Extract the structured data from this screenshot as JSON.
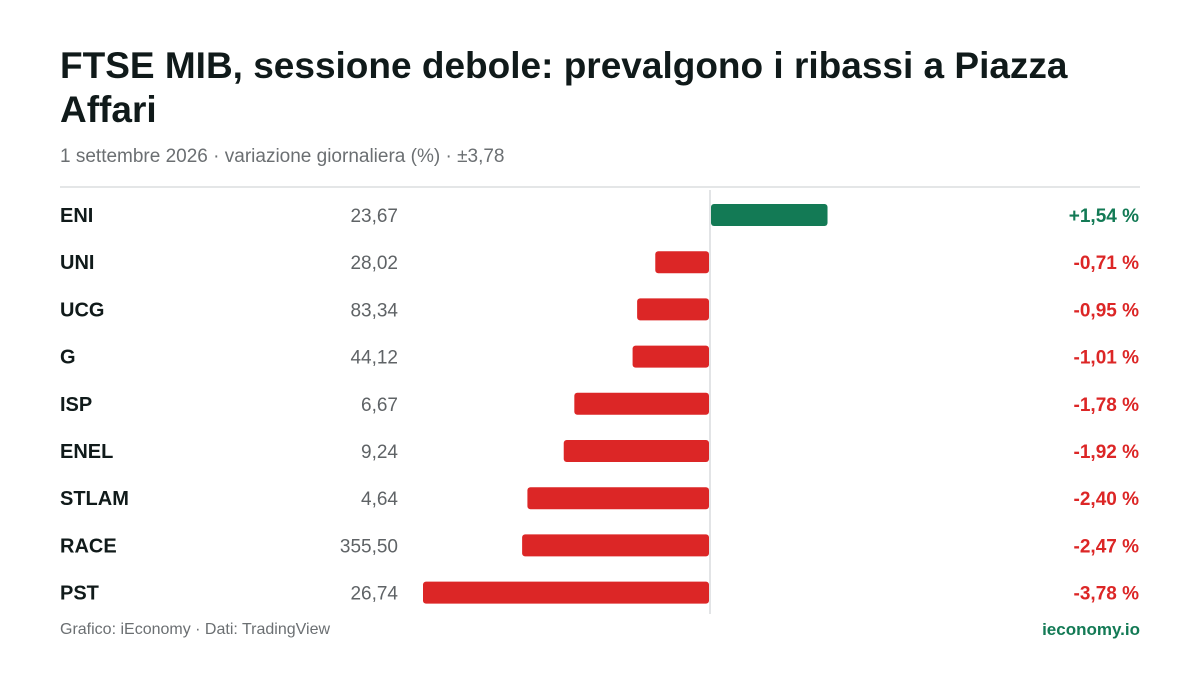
{
  "title": "FTSE MIB, sessione debole: prevalgono i ribassi a Piazza Affari",
  "subtitle": "1 settembre 2026 · variazione giornaliera (%) · ±3,78",
  "footer": {
    "source": "Grafico: iEconomy · Dati: TradingView",
    "brand": "ieconomy.io"
  },
  "colors": {
    "positive": "#137a55",
    "negative": "#dc2626",
    "ticker": "#101a1a",
    "price": "#5f6366",
    "axis": "#d9dcde"
  },
  "chart_data": {
    "type": "bar",
    "orientation": "horizontal",
    "xlim": [
      -3.78,
      3.78
    ],
    "rows": [
      {
        "ticker": "ENI",
        "price": "23,67",
        "value": 1.54,
        "label": "+1,54 %"
      },
      {
        "ticker": "UNI",
        "price": "28,02",
        "value": -0.71,
        "label": "-0,71 %"
      },
      {
        "ticker": "UCG",
        "price": "83,34",
        "value": -0.95,
        "label": "-0,95 %"
      },
      {
        "ticker": "G",
        "price": "44,12",
        "value": -1.01,
        "label": "-1,01 %"
      },
      {
        "ticker": "ISP",
        "price": "6,67",
        "value": -1.78,
        "label": "-1,78 %"
      },
      {
        "ticker": "ENEL",
        "price": "9,24",
        "value": -1.92,
        "label": "-1,92 %"
      },
      {
        "ticker": "STLAM",
        "price": "4,64",
        "value": -2.4,
        "label": "-2,40 %"
      },
      {
        "ticker": "RACE",
        "price": "355,50",
        "value": -2.47,
        "label": "-2,47 %"
      },
      {
        "ticker": "PST",
        "price": "26,74",
        "value": -3.78,
        "label": "-3,78 %"
      }
    ]
  }
}
